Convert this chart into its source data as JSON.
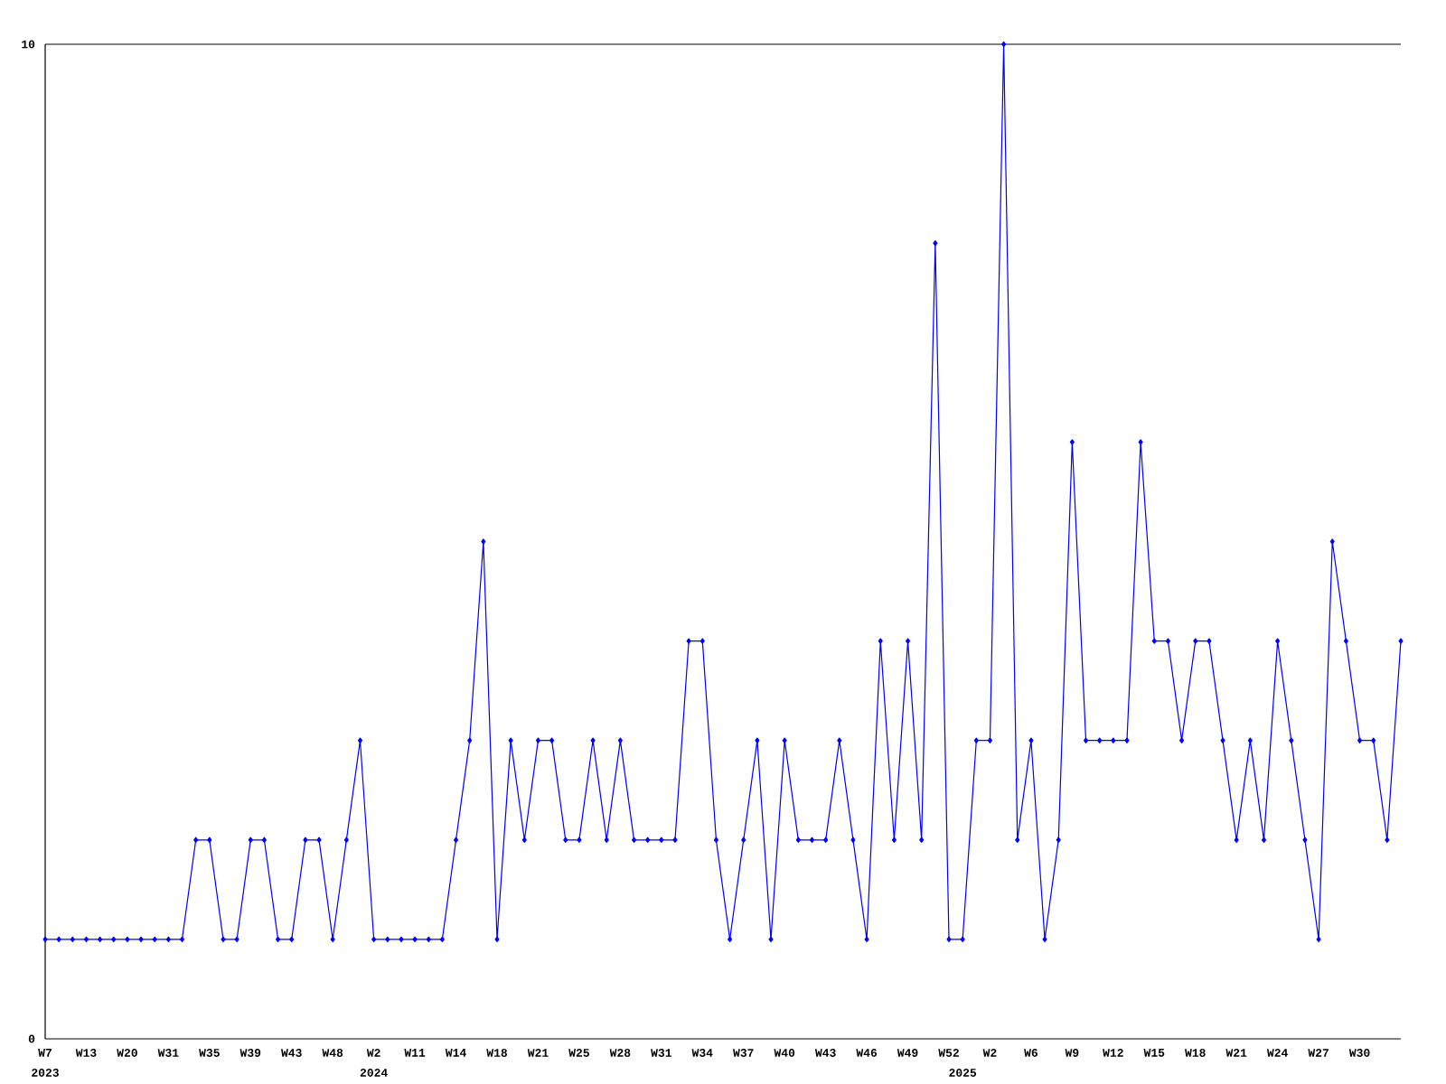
{
  "chart_data": {
    "type": "line",
    "categories": [
      "W7",
      null,
      null,
      "W13",
      null,
      null,
      "W20",
      null,
      null,
      "W31",
      null,
      null,
      "W35",
      null,
      null,
      "W39",
      null,
      null,
      "W43",
      null,
      null,
      "W48",
      null,
      null,
      "W2",
      null,
      null,
      "W11",
      null,
      null,
      "W14",
      null,
      null,
      "W18",
      null,
      null,
      "W21",
      null,
      null,
      "W25",
      null,
      null,
      "W28",
      null,
      null,
      "W31",
      null,
      null,
      "W34",
      null,
      null,
      "W37",
      null,
      null,
      "W40",
      null,
      null,
      "W43",
      null,
      null,
      "W46",
      null,
      null,
      "W49",
      null,
      null,
      "W52",
      null,
      null,
      "W2",
      null,
      null,
      "W6",
      null,
      null,
      "W9",
      null,
      null,
      "W12",
      null,
      null,
      "W15",
      null,
      null,
      "W18",
      null,
      null,
      "W21",
      null,
      null,
      "W24",
      null,
      null,
      "W27",
      null,
      null,
      "W30",
      null,
      null,
      null
    ],
    "series": [
      {
        "color": "#0000ff",
        "values": [
          1,
          1,
          1,
          1,
          1,
          1,
          1,
          1,
          1,
          1,
          1,
          2,
          2,
          1,
          1,
          2,
          2,
          1,
          1,
          2,
          2,
          1,
          2,
          3,
          1,
          1,
          1,
          1,
          1,
          1,
          2,
          3,
          5,
          1,
          3,
          2,
          3,
          3,
          2,
          2,
          3,
          2,
          3,
          2,
          2,
          2,
          2,
          4,
          4,
          2,
          1,
          2,
          3,
          1,
          3,
          2,
          2,
          2,
          3,
          2,
          1,
          4,
          2,
          4,
          2,
          8,
          1,
          1,
          3,
          3,
          10,
          2,
          3,
          1,
          2,
          6,
          3,
          3,
          3,
          3,
          6,
          4,
          4,
          3,
          4,
          4,
          3,
          2,
          3,
          2,
          4,
          3,
          2,
          1,
          5,
          4,
          3,
          3,
          2,
          4
        ]
      }
    ],
    "ylim": [
      0,
      10
    ],
    "yticks": [
      0,
      10
    ],
    "marker": "diamond",
    "line_style": "solid",
    "annotations": [
      "2023",
      "2024",
      "2025"
    ]
  }
}
